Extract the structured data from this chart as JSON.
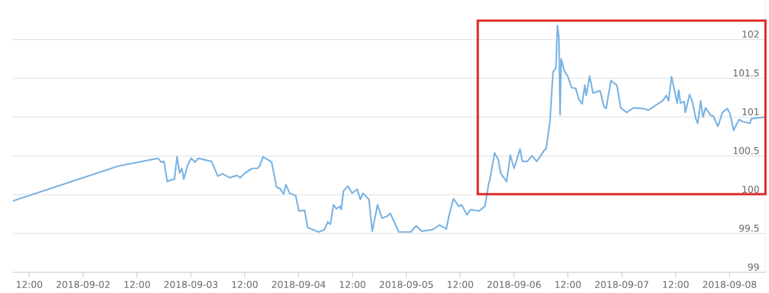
{
  "chart_data": {
    "type": "line",
    "x": [
      "2018-09-01T08:20",
      "2018-09-02T07:50",
      "2018-09-02T16:40",
      "2018-09-02T17:25",
      "2018-09-02T18:00",
      "2018-09-02T18:45",
      "2018-09-02T19:35",
      "2018-09-02T20:20",
      "2018-09-02T20:55",
      "2018-09-02T21:30",
      "2018-09-02T22:00",
      "2018-09-02T22:25",
      "2018-09-02T23:20",
      "2018-09-03T00:05",
      "2018-09-03T00:55",
      "2018-09-03T01:40",
      "2018-09-03T04:35",
      "2018-09-03T06:00",
      "2018-09-03T07:00",
      "2018-09-03T08:40",
      "2018-09-03T10:15",
      "2018-09-03T11:00",
      "2018-09-03T12:05",
      "2018-09-03T13:40",
      "2018-09-03T14:50",
      "2018-09-03T15:20",
      "2018-09-03T16:05",
      "2018-09-03T18:00",
      "2018-09-03T19:05",
      "2018-09-03T19:50",
      "2018-09-03T20:40",
      "2018-09-03T21:10",
      "2018-09-03T22:00",
      "2018-09-03T23:20",
      "2018-09-04T00:05",
      "2018-09-04T01:20",
      "2018-09-04T02:00",
      "2018-09-04T04:25",
      "2018-09-04T05:45",
      "2018-09-04T06:30",
      "2018-09-04T07:05",
      "2018-09-04T07:45",
      "2018-09-04T08:25",
      "2018-09-04T09:15",
      "2018-09-04T09:30",
      "2018-09-04T10:00",
      "2018-09-04T11:00",
      "2018-09-04T11:55",
      "2018-09-04T13:05",
      "2018-09-04T13:45",
      "2018-09-04T14:20",
      "2018-09-04T15:40",
      "2018-09-04T16:25",
      "2018-09-04T17:35",
      "2018-09-04T18:35",
      "2018-09-04T19:40",
      "2018-09-04T20:25",
      "2018-09-04T22:20",
      "2018-09-05T01:00",
      "2018-09-05T02:10",
      "2018-09-05T03:25",
      "2018-09-05T05:50",
      "2018-09-05T07:25",
      "2018-09-05T08:55",
      "2018-09-05T09:30",
      "2018-09-05T10:30",
      "2018-09-05T11:40",
      "2018-09-05T12:20",
      "2018-09-05T13:30",
      "2018-09-05T14:20",
      "2018-09-05T16:10",
      "2018-09-05T17:30",
      "2018-09-05T18:20",
      "2018-09-05T18:35",
      "2018-09-05T19:40",
      "2018-09-05T20:30",
      "2018-09-05T21:00",
      "2018-09-05T22:20",
      "2018-09-05T23:10",
      "2018-09-06T00:00",
      "2018-09-06T01:20",
      "2018-09-06T01:50",
      "2018-09-06T02:55",
      "2018-09-06T04:00",
      "2018-09-06T05:05",
      "2018-09-06T06:40",
      "2018-09-06T07:10",
      "2018-09-06T08:00",
      "2018-09-06T08:40",
      "2018-09-06T09:20",
      "2018-09-06T09:40",
      "2018-09-06T10:00",
      "2018-09-06T10:15",
      "2018-09-06T10:30",
      "2018-09-06T11:10",
      "2018-09-06T12:00",
      "2018-09-06T12:50",
      "2018-09-06T13:45",
      "2018-09-06T14:25",
      "2018-09-06T15:10",
      "2018-09-06T15:45",
      "2018-09-06T16:05",
      "2018-09-06T16:50",
      "2018-09-06T17:35",
      "2018-09-06T19:10",
      "2018-09-06T20:00",
      "2018-09-06T20:30",
      "2018-09-06T21:35",
      "2018-09-06T22:55",
      "2018-09-06T23:45",
      "2018-09-07T01:05",
      "2018-09-07T02:40",
      "2018-09-07T04:50",
      "2018-09-07T05:55",
      "2018-09-07T09:05",
      "2018-09-07T09:55",
      "2018-09-07T10:25",
      "2018-09-07T11:05",
      "2018-09-07T12:20",
      "2018-09-07T12:40",
      "2018-09-07T13:05",
      "2018-09-07T13:55",
      "2018-09-07T14:10",
      "2018-09-07T15:05",
      "2018-09-07T15:40",
      "2018-09-07T16:30",
      "2018-09-07T16:55",
      "2018-09-07T17:35",
      "2018-09-07T18:05",
      "2018-09-07T18:40",
      "2018-09-07T19:50",
      "2018-09-07T20:20",
      "2018-09-07T21:25",
      "2018-09-07T22:25",
      "2018-09-07T23:30",
      "2018-09-08T00:05",
      "2018-09-08T00:55",
      "2018-09-08T01:25",
      "2018-09-08T02:10",
      "2018-09-08T03:00",
      "2018-09-08T04:35",
      "2018-09-08T04:50",
      "2018-09-08T07:50"
    ],
    "series": [
      {
        "color": "#7ab3e3",
        "values": [
          99.92,
          100.37,
          100.47,
          100.42,
          100.43,
          100.17,
          100.19,
          100.2,
          100.49,
          100.28,
          100.34,
          100.2,
          100.39,
          100.47,
          100.42,
          100.47,
          100.43,
          100.24,
          100.27,
          100.22,
          100.25,
          100.22,
          100.28,
          100.34,
          100.34,
          100.37,
          100.49,
          100.42,
          100.1,
          100.08,
          100.01,
          100.13,
          100.02,
          99.99,
          99.79,
          99.8,
          99.58,
          99.52,
          99.55,
          99.65,
          99.62,
          99.87,
          99.82,
          99.85,
          99.81,
          100.05,
          100.11,
          100.02,
          100.07,
          99.94,
          100.02,
          99.94,
          99.53,
          99.87,
          99.7,
          99.72,
          99.76,
          99.52,
          99.52,
          99.6,
          99.53,
          99.55,
          99.61,
          99.56,
          99.73,
          99.95,
          99.85,
          99.87,
          99.74,
          99.81,
          99.79,
          99.85,
          100.14,
          100.19,
          100.54,
          100.45,
          100.28,
          100.17,
          100.51,
          100.34,
          100.59,
          100.43,
          100.43,
          100.5,
          100.43,
          100.57,
          100.6,
          100.95,
          101.58,
          101.64,
          102.18,
          102.02,
          101.03,
          101.75,
          101.6,
          101.52,
          101.38,
          101.37,
          101.23,
          101.17,
          101.41,
          101.28,
          101.53,
          101.31,
          101.34,
          101.14,
          101.11,
          101.47,
          101.41,
          101.12,
          101.06,
          101.12,
          101.11,
          101.09,
          101.21,
          101.28,
          101.21,
          101.52,
          101.18,
          101.35,
          101.18,
          101.2,
          101.06,
          101.29,
          101.21,
          100.98,
          100.92,
          101.21,
          101.0,
          101.12,
          101.02,
          101.02,
          100.88,
          101.06,
          101.11,
          101.05,
          100.83,
          100.89,
          100.97,
          100.94,
          100.92,
          100.98,
          101.0
        ]
      }
    ],
    "xlim": [
      "2018-09-01T08:20",
      "2018-09-08T08:00"
    ],
    "xticks": [
      {
        "value": "2018-09-01T12:00",
        "label": "12:00"
      },
      {
        "value": "2018-09-02T00:00",
        "label": "2018-09-02"
      },
      {
        "value": "2018-09-02T12:00",
        "label": "12:00"
      },
      {
        "value": "2018-09-03T00:00",
        "label": "2018-09-03"
      },
      {
        "value": "2018-09-03T12:00",
        "label": "12:00"
      },
      {
        "value": "2018-09-04T00:00",
        "label": "2018-09-04"
      },
      {
        "value": "2018-09-04T12:00",
        "label": "12:00"
      },
      {
        "value": "2018-09-05T00:00",
        "label": "2018-09-05"
      },
      {
        "value": "2018-09-05T12:00",
        "label": "12:00"
      },
      {
        "value": "2018-09-06T00:00",
        "label": "2018-09-06"
      },
      {
        "value": "2018-09-06T12:00",
        "label": "12:00"
      },
      {
        "value": "2018-09-07T00:00",
        "label": "2018-09-07"
      },
      {
        "value": "2018-09-07T12:00",
        "label": "12:00"
      },
      {
        "value": "2018-09-08T00:00",
        "label": "2018-09-08"
      }
    ],
    "ylim": [
      99,
      102.5
    ],
    "yticks": [
      99,
      99.5,
      100,
      100.5,
      101,
      101.5,
      102
    ],
    "grid": "y",
    "marker": "none",
    "line_style": "solid"
  }
}
